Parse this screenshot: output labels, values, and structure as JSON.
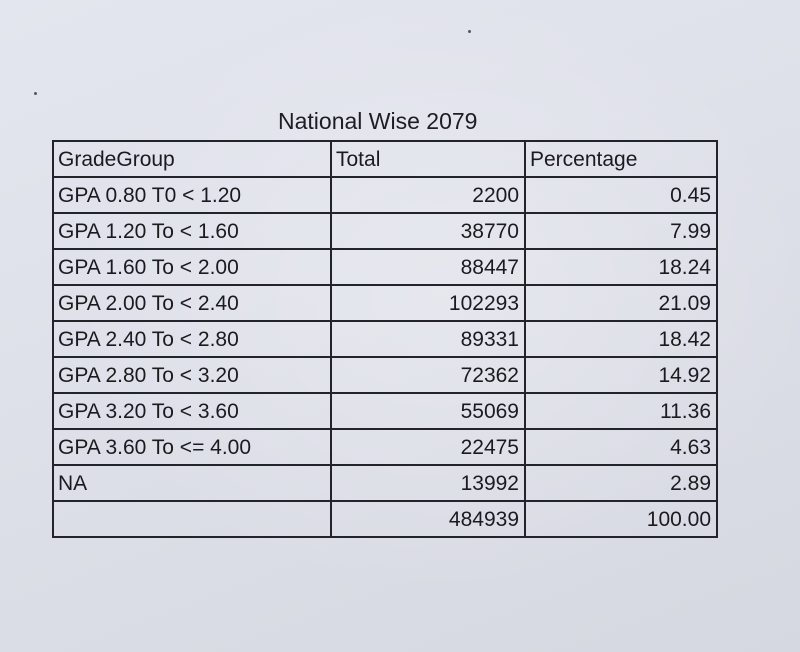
{
  "document": {
    "title": "National Wise 2079",
    "table": {
      "headers": [
        "GradeGroup",
        "Total",
        "Percentage"
      ],
      "rows": [
        {
          "grade": "GPA 0.80 T0 < 1.20",
          "total": "2200",
          "percentage": "0.45"
        },
        {
          "grade": "GPA 1.20 To < 1.60",
          "total": "38770",
          "percentage": "7.99"
        },
        {
          "grade": "GPA 1.60 To < 2.00",
          "total": "88447",
          "percentage": "18.24"
        },
        {
          "grade": "GPA 2.00 To < 2.40",
          "total": "102293",
          "percentage": "21.09"
        },
        {
          "grade": "GPA 2.40 To < 2.80",
          "total": "89331",
          "percentage": "18.42"
        },
        {
          "grade": "GPA 2.80 To < 3.20",
          "total": "72362",
          "percentage": "14.92"
        },
        {
          "grade": "GPA 3.20 To < 3.60",
          "total": "55069",
          "percentage": "11.36"
        },
        {
          "grade": "GPA 3.60 To <= 4.00",
          "total": "22475",
          "percentage": "4.63"
        },
        {
          "grade": "NA",
          "total": "13992",
          "percentage": "2.89"
        },
        {
          "grade": "",
          "total": "484939",
          "percentage": "100.00"
        }
      ]
    }
  }
}
